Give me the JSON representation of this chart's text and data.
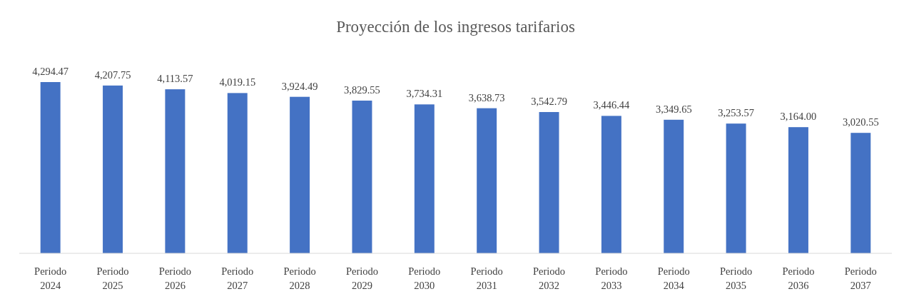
{
  "chart_data": {
    "type": "bar",
    "title": "Proyección de los ingresos tarifarios",
    "categories": [
      "Periodo 2024",
      "Periodo 2025",
      "Periodo 2026",
      "Periodo 2027",
      "Periodo 2028",
      "Periodo 2029",
      "Periodo 2030",
      "Periodo 2031",
      "Periodo 2032",
      "Periodo 2033",
      "Periodo 2034",
      "Periodo 2035",
      "Periodo 2036",
      "Periodo 2037"
    ],
    "values": [
      4294.47,
      4207.75,
      4113.57,
      4019.15,
      3924.49,
      3829.55,
      3734.31,
      3638.73,
      3542.79,
      3446.44,
      3349.65,
      3253.57,
      3164.0,
      3020.55
    ],
    "value_labels": [
      "4,294.47",
      "4,207.75",
      "4,113.57",
      "4,019.15",
      "3,924.49",
      "3,829.55",
      "3,734.31",
      "3,638.73",
      "3,542.79",
      "3,446.44",
      "3,349.65",
      "3,253.57",
      "3,164.00",
      "3,020.55"
    ],
    "color": "#4472c4"
  }
}
